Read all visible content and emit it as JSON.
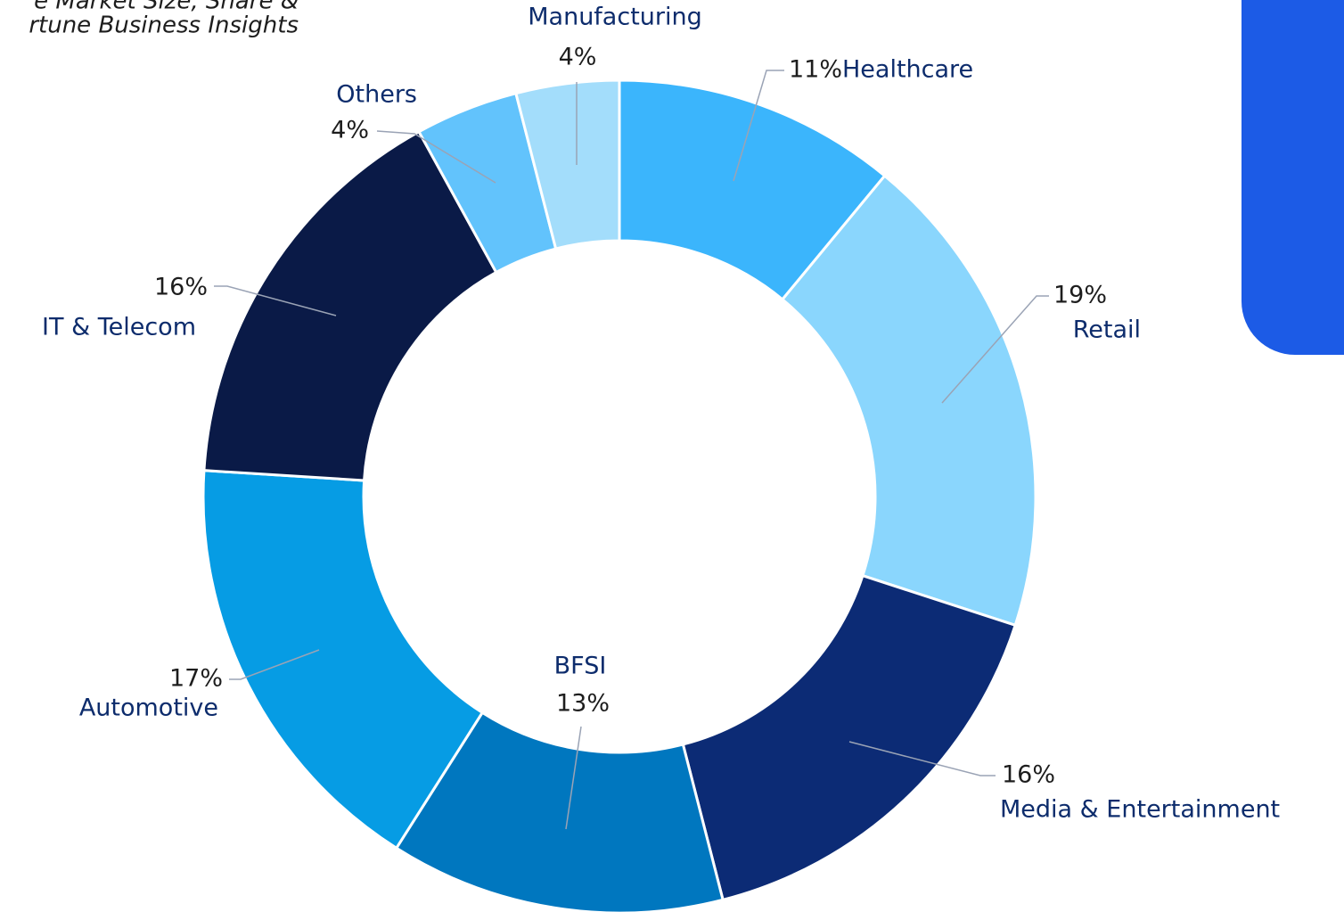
{
  "chart_data": {
    "type": "donut",
    "note_lines": [
      "e Market Size, Share &",
      "rtune Business Insights"
    ],
    "categories": [
      "Healthcare",
      "Retail",
      "Media & Entertainment",
      "BFSI",
      "Automotive",
      "IT & Telecom",
      "Others",
      "Manufacturing"
    ],
    "values": [
      11,
      19,
      16,
      13,
      17,
      16,
      4,
      4
    ],
    "value_labels": [
      "11%",
      "19%",
      "16%",
      "13%",
      "17%",
      "16%",
      "4%",
      "4%"
    ],
    "colors": [
      "#3bb5fc",
      "#8ad6fd",
      "#0c2b75",
      "#0077bf",
      "#069ce4",
      "#0a1a47",
      "#62c3fc",
      "#a3ddfb"
    ]
  }
}
